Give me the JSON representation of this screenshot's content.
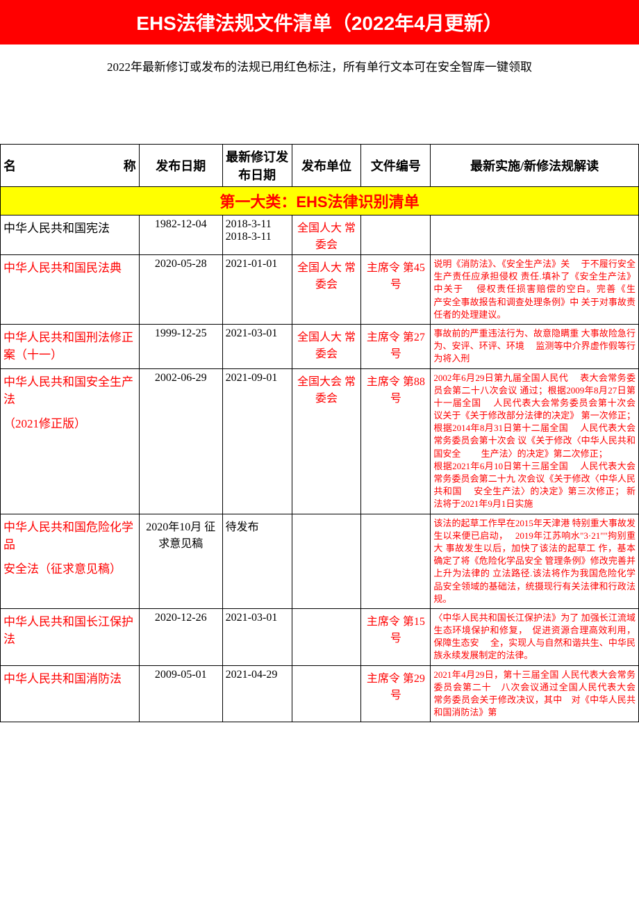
{
  "banner_title": "EHS法律法规文件清单（2022年4月更新）",
  "subtitle": "2022年最新修订或发布的法规已用红色标注，所有单行文本可在安全智库一键领取",
  "columns": {
    "name": "名　　　称",
    "pub_date": "发布日期",
    "rev_date": "最新修订发布日期",
    "issuer": "发布单位",
    "doc_num": "文件编号",
    "notes": "最新实施/新修法规解读"
  },
  "category1_title": "第一大类：EHS法律识别清单",
  "rows": [
    {
      "name": "中华人民共和国宪法",
      "name_color": "black",
      "pub_date": "1982-12-04",
      "rev_date": "2018-3-11\n2018-3-11",
      "issuer": "全国人大 常委会",
      "doc_num": "",
      "notes": ""
    },
    {
      "name": "中华人民共和国民法典",
      "pub_date": "2020-05-28",
      "rev_date": "2021-01-01",
      "issuer": "全国人大 常委会",
      "doc_num": "主席令 第45号",
      "notes": "说明《消防法》、《安全生产法》关　 于不履行安全生产责任应承担侵权 责任.填补了《安全生产法》中关于　 侵权责任损害赔偿的空白。完善《生　 产安全事故报告和调查处理条例》中 关于对事故责任者的处理建议。"
    },
    {
      "name": "中华人民共和国刑法修正案（十一）",
      "pub_date": "1999-12-25",
      "rev_date": "2021-03-01",
      "issuer": "全国人大 常委会",
      "doc_num": "主席令 第27号",
      "notes": "事故前的严重违法行为、故意隐瞒重 大事故险急行为、安评、环评、环境　 监测等中介界虚作假等行为将入刑"
    },
    {
      "name": "中华人民共和国安全生产法",
      "name2": "（2021修正版）",
      "pub_date": "2002-06-29",
      "rev_date": "2021-09-01",
      "issuer": "全国大会 常委会",
      "doc_num": "主席令 第88号",
      "notes": "2002年6月29日第九届全国人民代　 表大会常务委员会第二十八次会议 通过；根据2009年8月27日第十一届全国　 人民代表大会常务委员会第十次会 议关于《关于修改部分法律的决定》 第一次修正；根据2014年8月31日第十二届全国　 人民代表大会常务委员会第十次会 议《关于修改〈中华人民共和国安全　　 生产法〉的决定》第二次修正；\n根据2021年6月10日第十三届全国　 人民代表大会常务委员会第二十九 次会议《关于修改〈中华人民共和国　 安全生产法〉的决定》第三次修正； 新法将于2021年9月1日实施"
    },
    {
      "name": "中华人民共和国危险化学品",
      "name2": "安全法（征求意见稿）",
      "pub_date": "2020年10月 征求意见稿",
      "rev_date": "待发布",
      "issuer": "",
      "doc_num": "",
      "notes": "该法的起草工作早在2015年天津港 特别重大事故发生以来便已启动，　 2019年江苏响水\"3·21\"\"拘别重大 事故发生以后，加快了该法的起草工 作，基本确定了将《危险化学品安全 管理条例》修改完善并上升为法律的 立法路径.该法将作为我国危险化学 品安全领域的基础法，统摄现行有关法律和行政法规。"
    },
    {
      "name": "中华人民共和国长江保护法",
      "pub_date": "2020-12-26",
      "rev_date": "2021-03-01",
      "issuer": "",
      "doc_num": "主席令 第15号",
      "notes": "〈中华人民共和国长江保护法》为了 加强长江流域生态环境保护和修复，　促进资源合理高效利用，保障生态安　 全，实现人与自然和谐共生、中华民 族永续发展制定的法律。"
    },
    {
      "name": "中华人民共和国消防法",
      "pub_date": "2009-05-01",
      "rev_date": "2021-04-29",
      "issuer": "",
      "doc_num": "主席令 第29号",
      "notes": "2021年4月29日，第十三届全国 人民代表大会常务委员会第二十　八次会议通过全国人民代表大会　常务委员会关于修改决议，其中　对《中华人民共和国消防法》第"
    }
  ],
  "colors": {
    "banner_bg": "#ff0000",
    "banner_text": "#ffffff",
    "category_bg": "#ffff00",
    "category_text": "#ff0000",
    "red_text": "#ff0000",
    "border": "#000000"
  }
}
